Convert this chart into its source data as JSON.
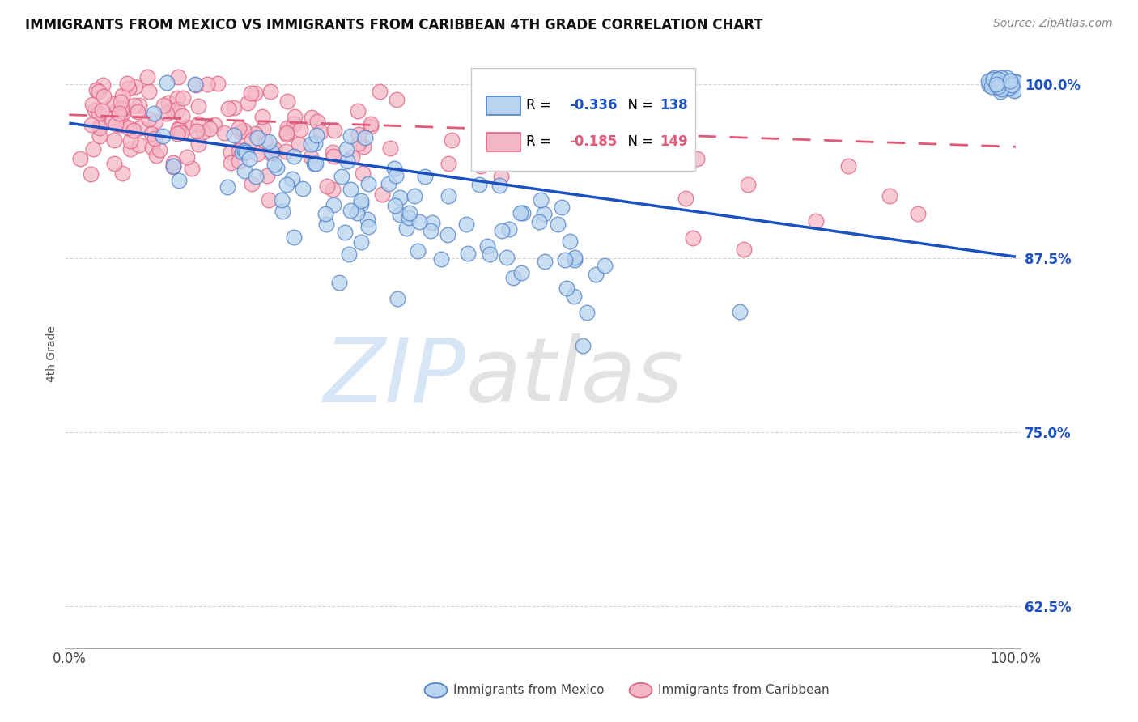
{
  "title": "IMMIGRANTS FROM MEXICO VS IMMIGRANTS FROM CARIBBEAN 4TH GRADE CORRELATION CHART",
  "source": "Source: ZipAtlas.com",
  "ylabel": "4th Grade",
  "y_min": 0.595,
  "y_max": 1.018,
  "x_min": -0.005,
  "x_max": 1.005,
  "legend_r_mexico": "-0.336",
  "legend_n_mexico": "138",
  "legend_r_caribbean": "-0.185",
  "legend_n_caribbean": "149",
  "color_mexico_fill": "#b8d4f0",
  "color_caribbean_fill": "#f5b8c8",
  "color_mexico_edge": "#5080c8",
  "color_caribbean_edge": "#e06080",
  "color_mexico_line": "#1a50c0",
  "color_caribbean_line": "#e05878",
  "background_color": "#ffffff",
  "grid_color": "#cccccc",
  "y_line_mexico_start": 0.972,
  "y_line_mexico_end": 0.876,
  "y_line_caribbean_start": 0.978,
  "y_line_caribbean_end": 0.955
}
